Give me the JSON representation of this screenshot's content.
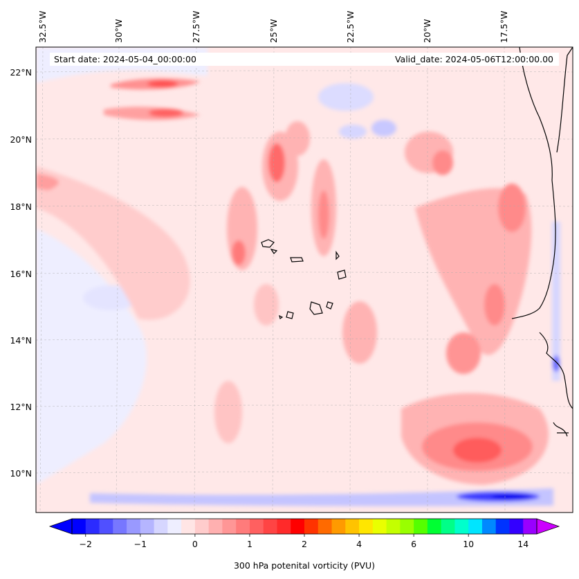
{
  "header": {
    "start_date": "Start date: 2024-05-04_00:00:00",
    "valid_date": "Valid_date: 2024-05-06T12:00:00.00"
  },
  "axes": {
    "lon_labels": [
      "32.5°W",
      "30°W",
      "27.5°W",
      "25°W",
      "22.5°W",
      "20°W",
      "17.5°W"
    ],
    "lat_labels": [
      "22°N",
      "20°N",
      "18°N",
      "16°N",
      "14°N",
      "12°N",
      "10°N"
    ]
  },
  "colorbar": {
    "label": "300 hPa potenital vorticity (PVU)",
    "tick_labels": [
      "−2",
      "−1",
      "0",
      "1",
      "2",
      "4",
      "6",
      "10",
      "14"
    ],
    "colors": [
      "#0000ff",
      "#2b2bff",
      "#5050ff",
      "#7777ff",
      "#9999ff",
      "#b5b5ff",
      "#d6d6ff",
      "#eeeeff",
      "#ffe5e5",
      "#ffcccc",
      "#ffb0b0",
      "#ff9696",
      "#ff7b7b",
      "#ff6060",
      "#ff4444",
      "#ff2a2a",
      "#ff0000",
      "#ff3300",
      "#ff6a00",
      "#ff9a00",
      "#ffc300",
      "#ffe600",
      "#eaff00",
      "#c4ff00",
      "#99ff00",
      "#55ff00",
      "#00ff33",
      "#00ff88",
      "#00ffcc",
      "#00e5ff",
      "#0088ff",
      "#0033ff",
      "#3300ff",
      "#9900ff"
    ],
    "extend_min_color": "#0000ff",
    "extend_max_color": "#cc00ff"
  }
}
